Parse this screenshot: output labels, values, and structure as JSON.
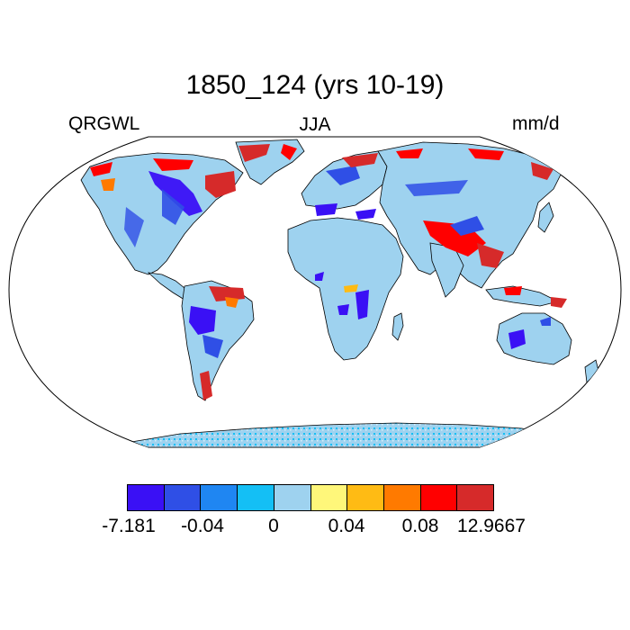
{
  "header": {
    "title": "1850_124 (yrs 10-19)",
    "left_label": "QRGWL",
    "center_label": "JJA",
    "right_label": "mm/d"
  },
  "colorbar": {
    "colors": [
      "#3a10f5",
      "#2f4fe6",
      "#1f86f2",
      "#14bff5",
      "#9ed2ef",
      "#fff77a",
      "#ffbb14",
      "#ff7a00",
      "#ff0000",
      "#d62a2a"
    ],
    "tick_labels": [
      "-7.181",
      "-0.04",
      "0",
      "0.04",
      "0.08",
      "12.9667"
    ]
  },
  "map": {
    "projection": "Robinson",
    "land_base_color": "#9ed2ef",
    "ocean_color": "#ffffff"
  }
}
